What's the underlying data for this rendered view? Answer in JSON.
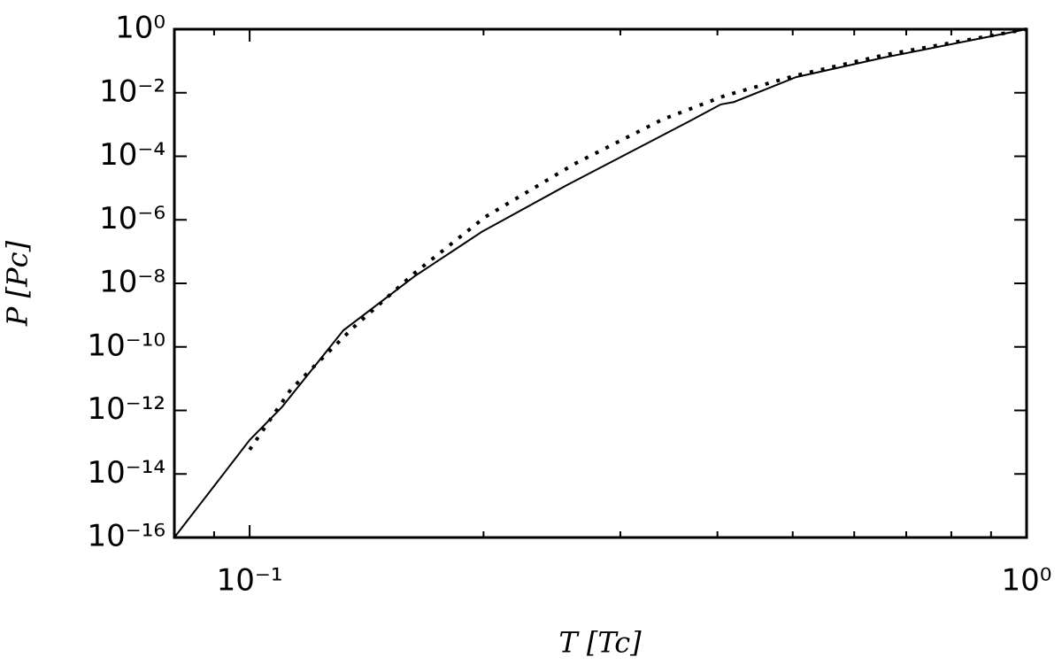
{
  "chart_data": {
    "type": "line",
    "xlabel": "T [Tc]",
    "ylabel": "P [Pc]",
    "xscale": "log",
    "yscale": "log",
    "xlim": [
      0.08,
      1
    ],
    "ylim": [
      1e-16,
      1
    ],
    "xticks": [
      {
        "value": 0.1,
        "label": "10⁻¹"
      },
      {
        "value": 1,
        "label": "10⁰"
      }
    ],
    "xminor_ticks": [
      0.09,
      0.2,
      0.3,
      0.4,
      0.5,
      0.6,
      0.7,
      0.8,
      0.9
    ],
    "yticks": [
      {
        "value": 1,
        "label": "10⁰"
      },
      {
        "value": 0.01,
        "label": "10⁻²"
      },
      {
        "value": 0.0001,
        "label": "10⁻⁴"
      },
      {
        "value": 1e-06,
        "label": "10⁻⁶"
      },
      {
        "value": 1e-08,
        "label": "10⁻⁸"
      },
      {
        "value": 1e-10,
        "label": "10⁻¹⁰"
      },
      {
        "value": 1e-12,
        "label": "10⁻¹²"
      },
      {
        "value": 1e-14,
        "label": "10⁻¹⁴"
      },
      {
        "value": 1e-16,
        "label": "10⁻¹⁶"
      }
    ],
    "series": [
      {
        "color": "#000000",
        "line_style": "solid",
        "x": [
          0.08,
          0.1,
          0.11,
          0.132,
          0.163,
          0.199,
          0.255,
          0.368,
          0.404,
          0.42,
          0.505,
          0.656,
          1
        ],
        "values": [
          1e-16,
          1.17e-13,
          1.26e-12,
          3.3e-10,
          1.66e-08,
          4.2e-07,
          1.17e-05,
          0.00126,
          0.0043,
          0.0051,
          0.031,
          0.129,
          1
        ]
      },
      {
        "color": "#000000",
        "line_style": "dotted",
        "x": [
          0.1,
          0.113,
          0.136,
          0.163,
          0.201,
          0.262,
          0.34,
          0.409,
          0.505,
          0.656,
          1
        ],
        "values": [
          5.8e-14,
          4.6e-12,
          4.1e-10,
          2.1e-08,
          1.23e-06,
          5.8e-05,
          0.00145,
          0.0081,
          0.035,
          0.155,
          1
        ]
      }
    ]
  }
}
